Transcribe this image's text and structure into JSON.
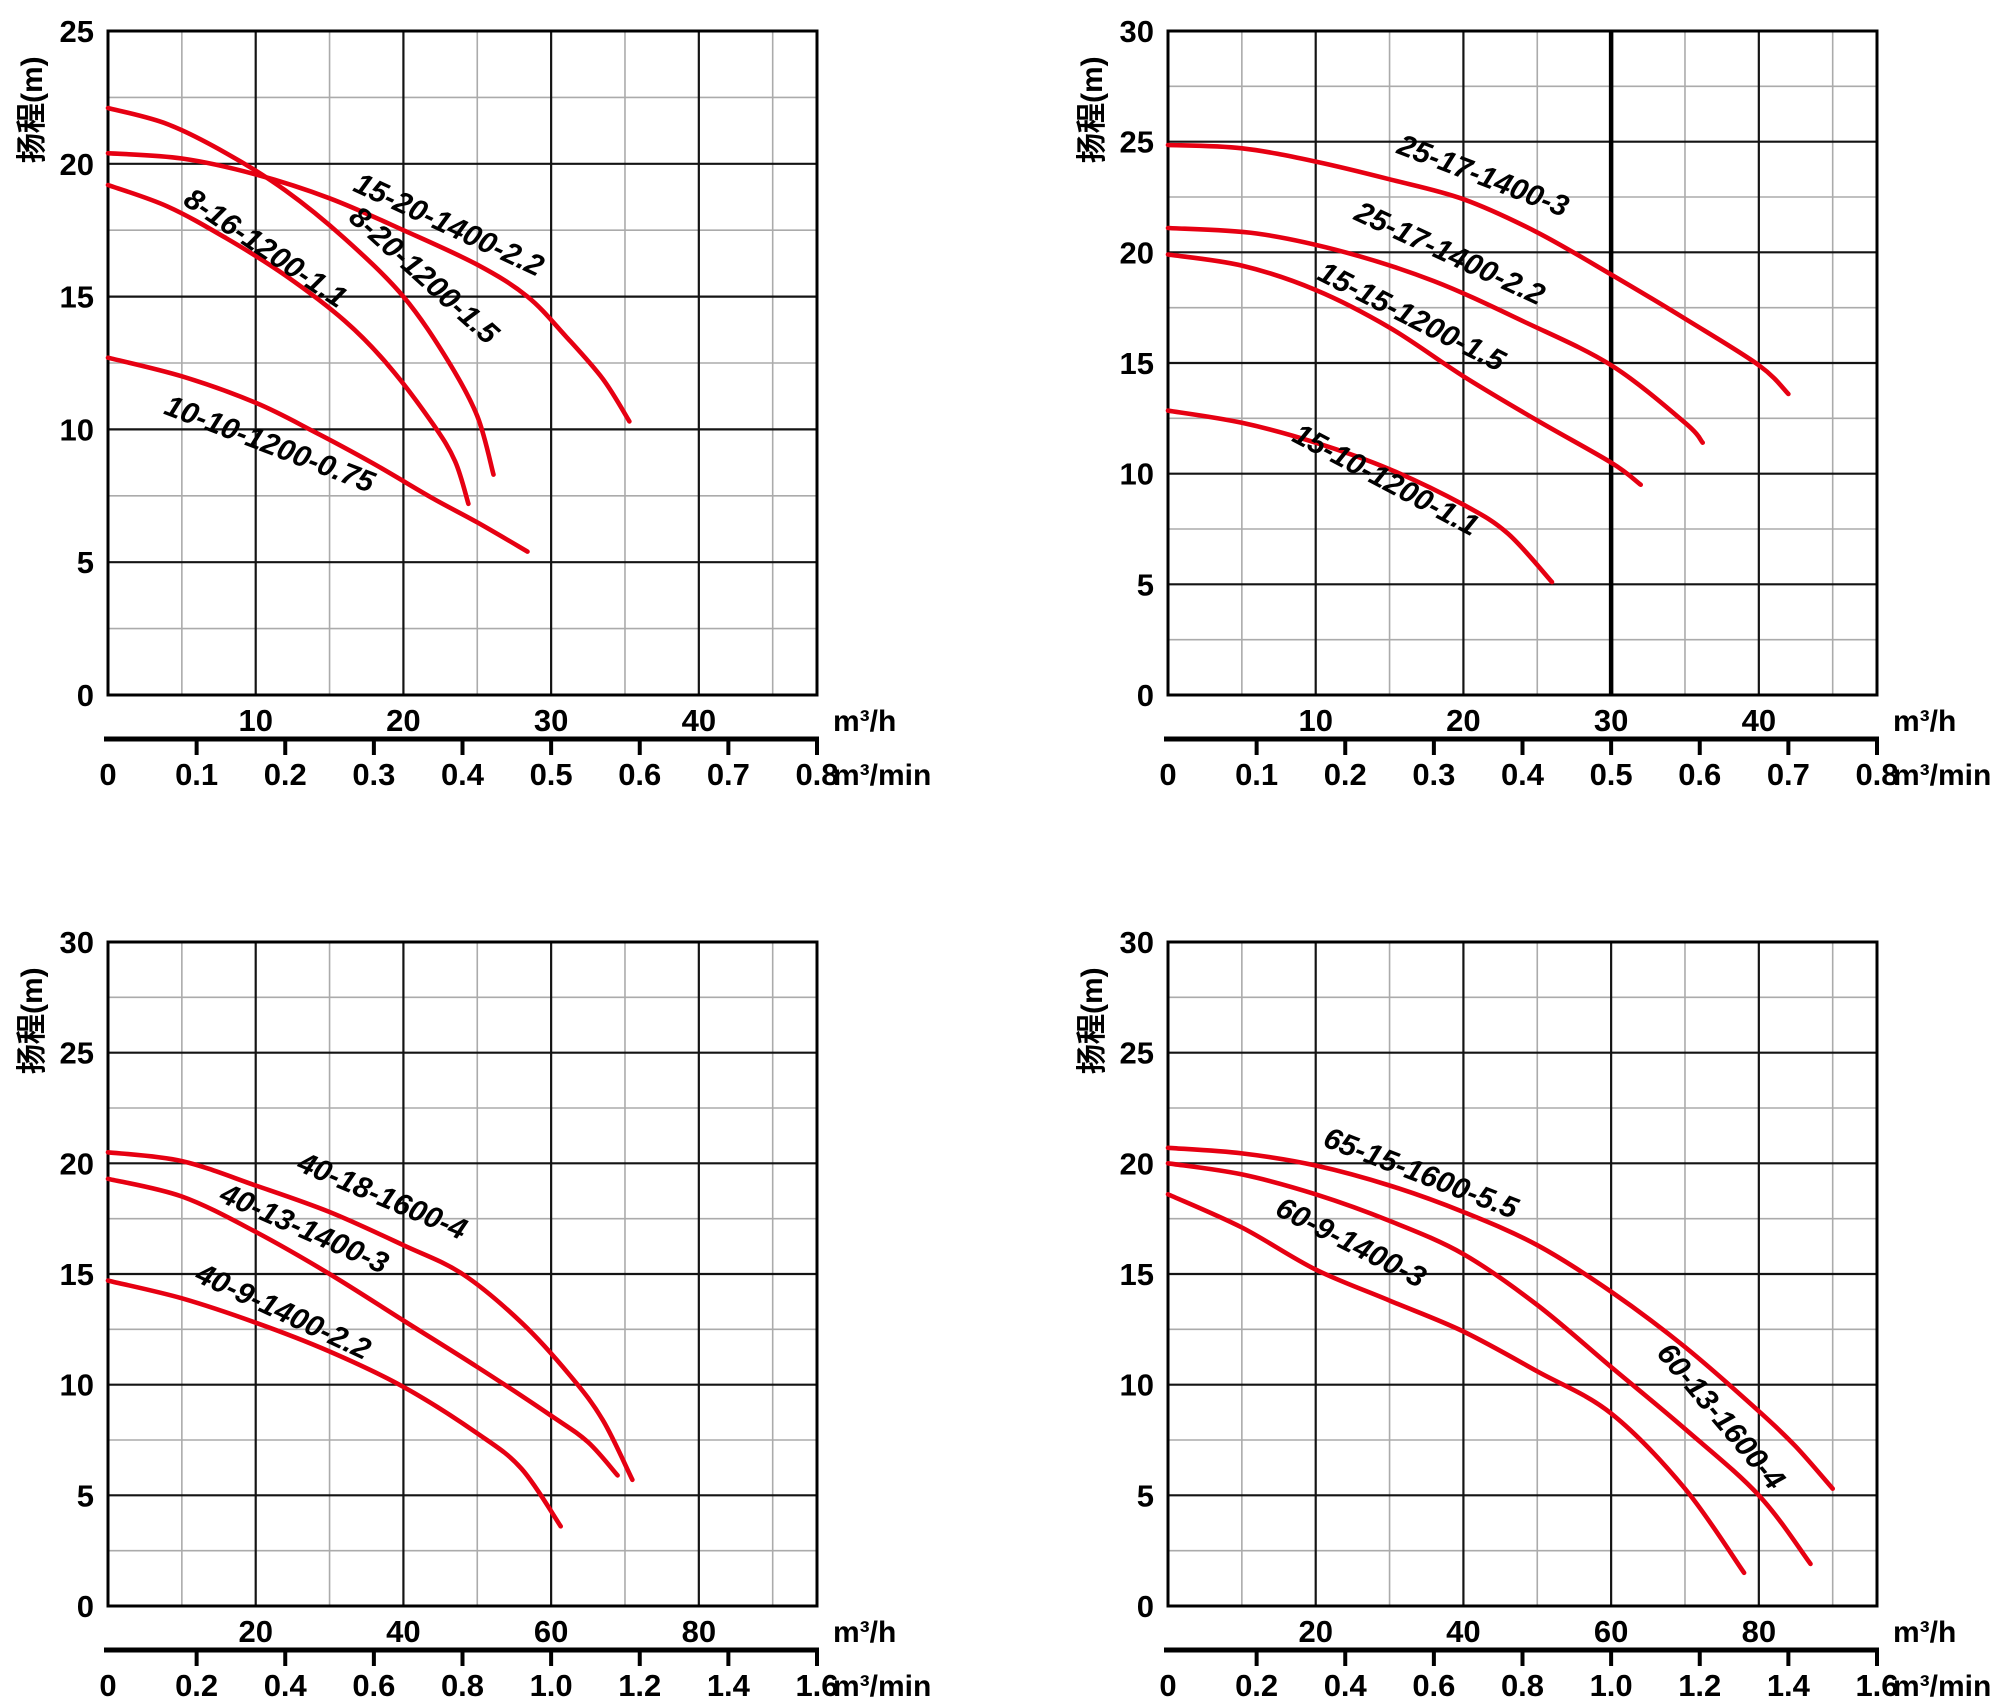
{
  "colors": {
    "curve_red": "#e60012",
    "grid_major": "#141414",
    "grid_minor": "#ababab",
    "border": "#000000",
    "reference_line": "#000000",
    "text": "#000000",
    "background": "#ffffff"
  },
  "chart_data": [
    {
      "type": "line",
      "position": "top-left",
      "y_axis": {
        "label": "扬程(m)",
        "min": 0,
        "max": 25,
        "tick_labels": [
          "0",
          "5",
          "10",
          "15",
          "20",
          "25"
        ],
        "major_step": 5,
        "minor_step": 2.5
      },
      "x_axis": {
        "unit": "m³/h",
        "min": 0,
        "max": 48,
        "tick_labels": [
          "10",
          "20",
          "30",
          "40"
        ],
        "major_step": 10,
        "minor_step": 5
      },
      "x_axis_secondary": {
        "unit": "m³/min",
        "min": 0,
        "max": 0.8,
        "tick_labels": [
          "0",
          "0.1",
          "0.2",
          "0.3",
          "0.4",
          "0.5",
          "0.6",
          "0.7",
          "0.8"
        ]
      },
      "reference_line_x": null,
      "series": [
        {
          "name": "15-20-1400-2.2",
          "points": [
            [
              0,
              20.4
            ],
            [
              5,
              20.2
            ],
            [
              10,
              19.6
            ],
            [
              15,
              18.7
            ],
            [
              20,
              17.5
            ],
            [
              25,
              16.2
            ],
            [
              28.4,
              15.0
            ],
            [
              31,
              13.5
            ],
            [
              33.5,
              11.9
            ],
            [
              35.3,
              10.3
            ]
          ],
          "label_anchor": [
            16.5,
            19.0
          ],
          "label_rotation_deg": 25
        },
        {
          "name": "8-20-1200-1.5",
          "points": [
            [
              0,
              22.1
            ],
            [
              4,
              21.5
            ],
            [
              8,
              20.4
            ],
            [
              12,
              19.0
            ],
            [
              16,
              17.2
            ],
            [
              20,
              15.0
            ],
            [
              23,
              12.6
            ],
            [
              25,
              10.5
            ],
            [
              26.1,
              8.3
            ]
          ],
          "label_anchor": [
            16.2,
            17.9
          ],
          "label_rotation_deg": 42
        },
        {
          "name": "8-16-1200-1.1",
          "points": [
            [
              0,
              19.2
            ],
            [
              4,
              18.4
            ],
            [
              8,
              17.2
            ],
            [
              12,
              15.8
            ],
            [
              16,
              14.1
            ],
            [
              19,
              12.4
            ],
            [
              22,
              10.2
            ],
            [
              23.5,
              8.8
            ],
            [
              24.4,
              7.2
            ]
          ],
          "label_anchor": [
            5.0,
            18.5
          ],
          "label_rotation_deg": 34
        },
        {
          "name": "10-10-1200-0.75",
          "points": [
            [
              0,
              12.7
            ],
            [
              5,
              12.0
            ],
            [
              10,
              11.0
            ],
            [
              14,
              9.9
            ],
            [
              18,
              8.7
            ],
            [
              22,
              7.4
            ],
            [
              25,
              6.5
            ],
            [
              28.4,
              5.4
            ]
          ],
          "label_anchor": [
            3.7,
            10.6
          ],
          "label_rotation_deg": 21
        }
      ]
    },
    {
      "type": "line",
      "position": "top-right",
      "y_axis": {
        "label": "扬程(m)",
        "min": 0,
        "max": 30,
        "tick_labels": [
          "0",
          "5",
          "10",
          "15",
          "20",
          "25",
          "30"
        ],
        "major_step": 5,
        "minor_step": 2.5
      },
      "x_axis": {
        "unit": "m³/h",
        "min": 0,
        "max": 48,
        "tick_labels": [
          "10",
          "20",
          "30",
          "40"
        ],
        "major_step": 10,
        "minor_step": 5
      },
      "x_axis_secondary": {
        "unit": "m³/min",
        "min": 0,
        "max": 0.8,
        "tick_labels": [
          "0",
          "0.1",
          "0.2",
          "0.3",
          "0.4",
          "0.5",
          "0.6",
          "0.7",
          "0.8"
        ]
      },
      "reference_line_x": 30,
      "series": [
        {
          "name": "25-17-1400-3",
          "points": [
            [
              0,
              24.85
            ],
            [
              5,
              24.7
            ],
            [
              10,
              24.1
            ],
            [
              15,
              23.3
            ],
            [
              20,
              22.4
            ],
            [
              25,
              20.9
            ],
            [
              30,
              19.0
            ],
            [
              35,
              17.0
            ],
            [
              40,
              14.9
            ],
            [
              42,
              13.6
            ]
          ],
          "label_anchor": [
            15.4,
            24.5
          ],
          "label_rotation_deg": 21
        },
        {
          "name": "25-17-1400-2.2",
          "points": [
            [
              0,
              21.1
            ],
            [
              6,
              20.85
            ],
            [
              12,
              20.0
            ],
            [
              18,
              18.7
            ],
            [
              24,
              16.9
            ],
            [
              30,
              14.9
            ],
            [
              35,
              12.3
            ],
            [
              36.2,
              11.4
            ]
          ],
          "label_anchor": [
            12.5,
            21.5
          ],
          "label_rotation_deg": 25
        },
        {
          "name": "15-15-1200-1.5",
          "points": [
            [
              0,
              19.9
            ],
            [
              5,
              19.4
            ],
            [
              10,
              18.3
            ],
            [
              15,
              16.6
            ],
            [
              20,
              14.4
            ],
            [
              25,
              12.4
            ],
            [
              30,
              10.5
            ],
            [
              32,
              9.5
            ]
          ],
          "label_anchor": [
            10.0,
            18.8
          ],
          "label_rotation_deg": 27
        },
        {
          "name": "15-10-1200-1.1",
          "points": [
            [
              0,
              12.85
            ],
            [
              5,
              12.3
            ],
            [
              10,
              11.4
            ],
            [
              15,
              10.2
            ],
            [
              20,
              8.6
            ],
            [
              23,
              7.3
            ],
            [
              26,
              5.1
            ]
          ],
          "label_anchor": [
            8.3,
            11.5
          ],
          "label_rotation_deg": 28
        }
      ]
    },
    {
      "type": "line",
      "position": "bottom-left",
      "y_axis": {
        "label": "扬程(m)",
        "min": 0,
        "max": 30,
        "tick_labels": [
          "0",
          "5",
          "10",
          "15",
          "20",
          "25",
          "30"
        ],
        "major_step": 5,
        "minor_step": 2.5
      },
      "x_axis": {
        "unit": "m³/h",
        "min": 0,
        "max": 96,
        "tick_labels": [
          "20",
          "40",
          "60",
          "80"
        ],
        "major_step": 20,
        "minor_step": 10
      },
      "x_axis_secondary": {
        "unit": "m³/min",
        "min": 0,
        "max": 1.6,
        "tick_labels": [
          "0",
          "0.2",
          "0.4",
          "0.6",
          "0.8",
          "1.0",
          "1.2",
          "1.4",
          "1.6"
        ]
      },
      "reference_line_x": null,
      "series": [
        {
          "name": "40-18-1600-4",
          "points": [
            [
              0,
              20.5
            ],
            [
              10,
              20.1
            ],
            [
              20,
              19.0
            ],
            [
              30,
              17.8
            ],
            [
              40,
              16.3
            ],
            [
              48,
              15.0
            ],
            [
              56,
              12.8
            ],
            [
              62.6,
              10.4
            ],
            [
              67,
              8.4
            ],
            [
              71,
              5.7
            ]
          ],
          "label_anchor": [
            25.4,
            19.7
          ],
          "label_rotation_deg": 23
        },
        {
          "name": "40-13-1400-3",
          "points": [
            [
              0,
              19.3
            ],
            [
              10,
              18.5
            ],
            [
              20,
              16.9
            ],
            [
              30,
              15.0
            ],
            [
              40,
              12.9
            ],
            [
              50,
              10.8
            ],
            [
              60,
              8.6
            ],
            [
              65,
              7.4
            ],
            [
              69,
              5.9
            ]
          ],
          "label_anchor": [
            14.9,
            18.3
          ],
          "label_rotation_deg": 24
        },
        {
          "name": "40-9-1400-2.2",
          "points": [
            [
              0,
              14.7
            ],
            [
              10,
              13.9
            ],
            [
              20,
              12.8
            ],
            [
              30,
              11.5
            ],
            [
              40,
              9.9
            ],
            [
              50,
              7.8
            ],
            [
              56,
              6.2
            ],
            [
              61.3,
              3.6
            ]
          ],
          "label_anchor": [
            11.6,
            14.7
          ],
          "label_rotation_deg": 25
        }
      ]
    },
    {
      "type": "line",
      "position": "bottom-right",
      "y_axis": {
        "label": "扬程(m)",
        "min": 0,
        "max": 30,
        "tick_labels": [
          "0",
          "5",
          "10",
          "15",
          "20",
          "25",
          "30"
        ],
        "major_step": 5,
        "minor_step": 2.5
      },
      "x_axis": {
        "unit": "m³/h",
        "min": 0,
        "max": 96,
        "tick_labels": [
          "20",
          "40",
          "60",
          "80"
        ],
        "major_step": 20,
        "minor_step": 10
      },
      "x_axis_secondary": {
        "unit": "m³/min",
        "min": 0,
        "max": 1.6,
        "tick_labels": [
          "0",
          "0.2",
          "0.4",
          "0.6",
          "0.8",
          "1.0",
          "1.2",
          "1.4",
          "1.6"
        ]
      },
      "reference_line_x": null,
      "series": [
        {
          "name": "65-15-1600-5.5",
          "points": [
            [
              0,
              20.7
            ],
            [
              10,
              20.45
            ],
            [
              20,
              19.9
            ],
            [
              30,
              19.0
            ],
            [
              40,
              17.8
            ],
            [
              50,
              16.3
            ],
            [
              60,
              14.2
            ],
            [
              70,
              11.7
            ],
            [
              80,
              8.8
            ],
            [
              85,
              7.2
            ],
            [
              90,
              5.3
            ]
          ],
          "label_anchor": [
            20.8,
            20.8
          ],
          "label_rotation_deg": 21
        },
        {
          "name": "60-13-1600-4",
          "points": [
            [
              0,
              20.0
            ],
            [
              10,
              19.5
            ],
            [
              20,
              18.6
            ],
            [
              30,
              17.4
            ],
            [
              40,
              15.9
            ],
            [
              50,
              13.6
            ],
            [
              60,
              10.8
            ],
            [
              70,
              8.0
            ],
            [
              80,
              5.0
            ],
            [
              87,
              1.9
            ]
          ],
          "label_anchor": [
            66.0,
            11.4
          ],
          "label_rotation_deg": 50
        },
        {
          "name": "60-9-1400-3",
          "points": [
            [
              0,
              18.6
            ],
            [
              10,
              17.1
            ],
            [
              20,
              15.2
            ],
            [
              30,
              13.8
            ],
            [
              40,
              12.4
            ],
            [
              50,
              10.6
            ],
            [
              60,
              8.7
            ],
            [
              70,
              5.3
            ],
            [
              78,
              1.5
            ]
          ],
          "label_anchor": [
            14.3,
            17.7
          ],
          "label_rotation_deg": 27
        }
      ]
    }
  ]
}
